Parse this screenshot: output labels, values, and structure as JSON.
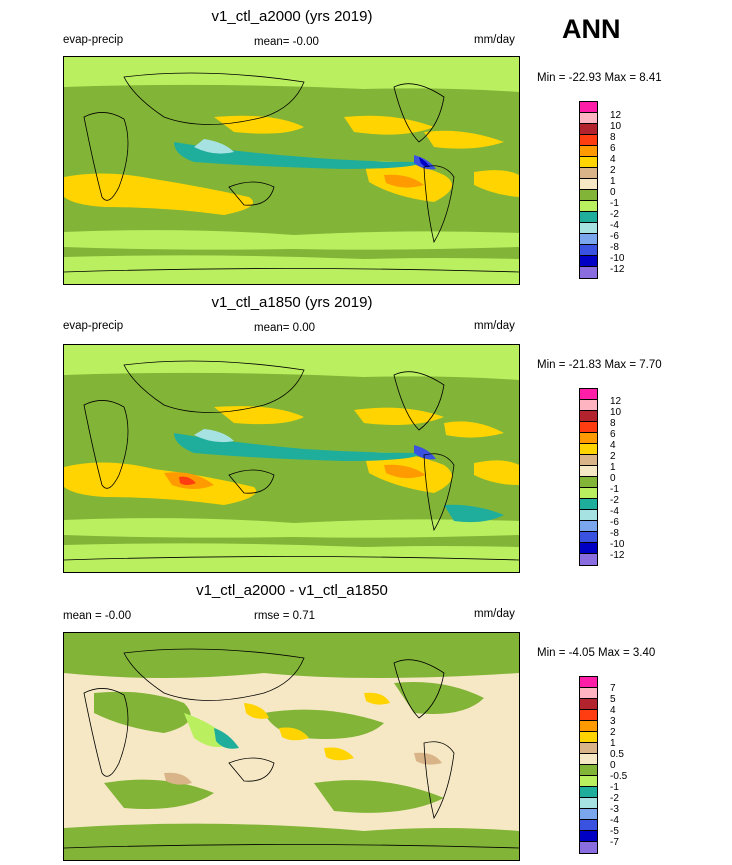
{
  "header": {
    "season": "ANN"
  },
  "palette12": [
    "#ff1ea8",
    "#ffb4c2",
    "#b3232d",
    "#ff3d10",
    "#ff9a00",
    "#ffd400",
    "#d9b488",
    "#f6e8c4",
    "#82b437",
    "#baf060",
    "#1fae9c",
    "#a6e2e2",
    "#7aa6ee",
    "#3a52e0",
    "#0000c4",
    "#8a6ee0"
  ],
  "palette7": [
    "#ff1ea8",
    "#ffb4c2",
    "#b3232d",
    "#ff3d10",
    "#ff9a00",
    "#ffd400",
    "#d9b488",
    "#f6e8c4",
    "#82b437",
    "#baf060",
    "#1fae9c",
    "#a6e2e2",
    "#7aa6ee",
    "#3a52e0",
    "#0000c4",
    "#8a6ee0"
  ],
  "panels": [
    {
      "title": "v1_ctl_a2000 (yrs 2019)",
      "left_label": "evap-precip",
      "center_label": "mean=  -0.00",
      "units": "mm/day",
      "minmax": "Min = -22.93 Max =   8.41",
      "ticks": [
        "12",
        "10",
        "8",
        "6",
        "4",
        "2",
        "1",
        "0",
        "-1",
        "-2",
        "-4",
        "-6",
        "-8",
        "-10",
        "-12"
      ]
    },
    {
      "title": "v1_ctl_a1850 (yrs 2019)",
      "left_label": "evap-precip",
      "center_label": "mean=   0.00",
      "units": "mm/day",
      "minmax": "Min = -21.83 Max =   7.70",
      "ticks": [
        "12",
        "10",
        "8",
        "6",
        "4",
        "2",
        "1",
        "0",
        "-1",
        "-2",
        "-4",
        "-6",
        "-8",
        "-10",
        "-12"
      ]
    },
    {
      "title": "v1_ctl_a2000 - v1_ctl_a1850",
      "left_label": "mean =  -0.00",
      "center_label": "rmse =   0.71",
      "units": "mm/day",
      "minmax": "Min =  -4.05 Max =   3.40",
      "ticks": [
        "7",
        "5",
        "4",
        "3",
        "2",
        "1",
        "0.5",
        "0",
        "-0.5",
        "-1",
        "-2",
        "-3",
        "-4",
        "-5",
        "-7"
      ]
    }
  ]
}
